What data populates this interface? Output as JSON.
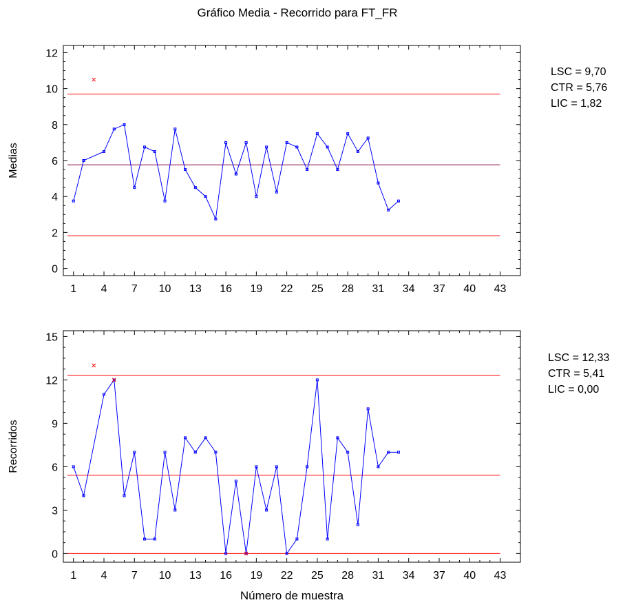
{
  "title": "Gráfico Media - Recorrido para FT_FR",
  "chart_data": [
    {
      "type": "line",
      "ylabel": "Medias",
      "xlabel": "",
      "xlim": [
        0,
        45
      ],
      "ylim": [
        -0.4,
        12.4
      ],
      "xticks": [
        1,
        4,
        7,
        10,
        13,
        16,
        19,
        22,
        25,
        28,
        31,
        34,
        37,
        40,
        43
      ],
      "yticks": [
        0,
        2,
        4,
        6,
        8,
        10,
        12
      ],
      "grid": false,
      "colors": {
        "series": "#0000ff",
        "limits": "#ff0000",
        "center": "#800040",
        "outlier": "#ff0000"
      },
      "series": [
        {
          "x": [
            1,
            2,
            4,
            5,
            6,
            7,
            8,
            9,
            10,
            11,
            12,
            13,
            14,
            15,
            16,
            17,
            18,
            19,
            20,
            21,
            22,
            23,
            24,
            25,
            26,
            27,
            28,
            29,
            30,
            31,
            32,
            33
          ],
          "values": [
            3.75,
            6.0,
            6.5,
            7.75,
            8.0,
            4.5,
            6.75,
            6.5,
            3.75,
            7.75,
            5.5,
            4.5,
            4.0,
            2.75,
            7.0,
            5.25,
            7.0,
            4.0,
            6.75,
            4.25,
            7.0,
            6.75,
            5.5,
            7.5,
            6.75,
            5.5,
            7.5,
            6.5,
            7.25,
            4.75,
            3.25,
            3.75
          ]
        }
      ],
      "outliers": [
        {
          "x": 3,
          "value": 10.5
        }
      ],
      "limits": {
        "ucl": 9.7,
        "center": 5.76,
        "lcl": 1.82
      },
      "limit_labels": [
        "LSC = 9,70",
        "CTR = 5,76",
        "LIC = 1,82"
      ]
    },
    {
      "type": "line",
      "ylabel": "Recorridos",
      "xlabel": "Número de muestra",
      "xlim": [
        0,
        45
      ],
      "ylim": [
        -0.6,
        15.4
      ],
      "xticks": [
        1,
        4,
        7,
        10,
        13,
        16,
        19,
        22,
        25,
        28,
        31,
        34,
        37,
        40,
        43
      ],
      "yticks": [
        0,
        3,
        6,
        9,
        12,
        15
      ],
      "grid": false,
      "colors": {
        "series": "#0000ff",
        "limits": "#ff0000",
        "center": "#ff0000",
        "outlier": "#ff0000"
      },
      "series": [
        {
          "x": [
            1,
            2,
            4,
            5,
            6,
            7,
            8,
            9,
            10,
            11,
            12,
            13,
            14,
            15,
            16,
            17,
            18,
            19,
            20,
            21,
            22,
            23,
            24,
            25,
            26,
            27,
            28,
            29,
            30,
            31,
            32,
            33
          ],
          "values": [
            6,
            4,
            11,
            12,
            4,
            7,
            1,
            1,
            7,
            3,
            8,
            7,
            8,
            7,
            0,
            5,
            0,
            6,
            3,
            6,
            0,
            1,
            6,
            12,
            1,
            8,
            7,
            2,
            10,
            6,
            7,
            7
          ]
        }
      ],
      "outliers": [
        {
          "x": 3,
          "value": 13
        },
        {
          "x": 5,
          "value": 12
        },
        {
          "x": 18,
          "value": 0
        }
      ],
      "limits": {
        "ucl": 12.33,
        "center": 5.41,
        "lcl": 0.0
      },
      "limit_labels": [
        "LSC = 12,33",
        "CTR = 5,41",
        "LIC = 0,00"
      ]
    }
  ]
}
